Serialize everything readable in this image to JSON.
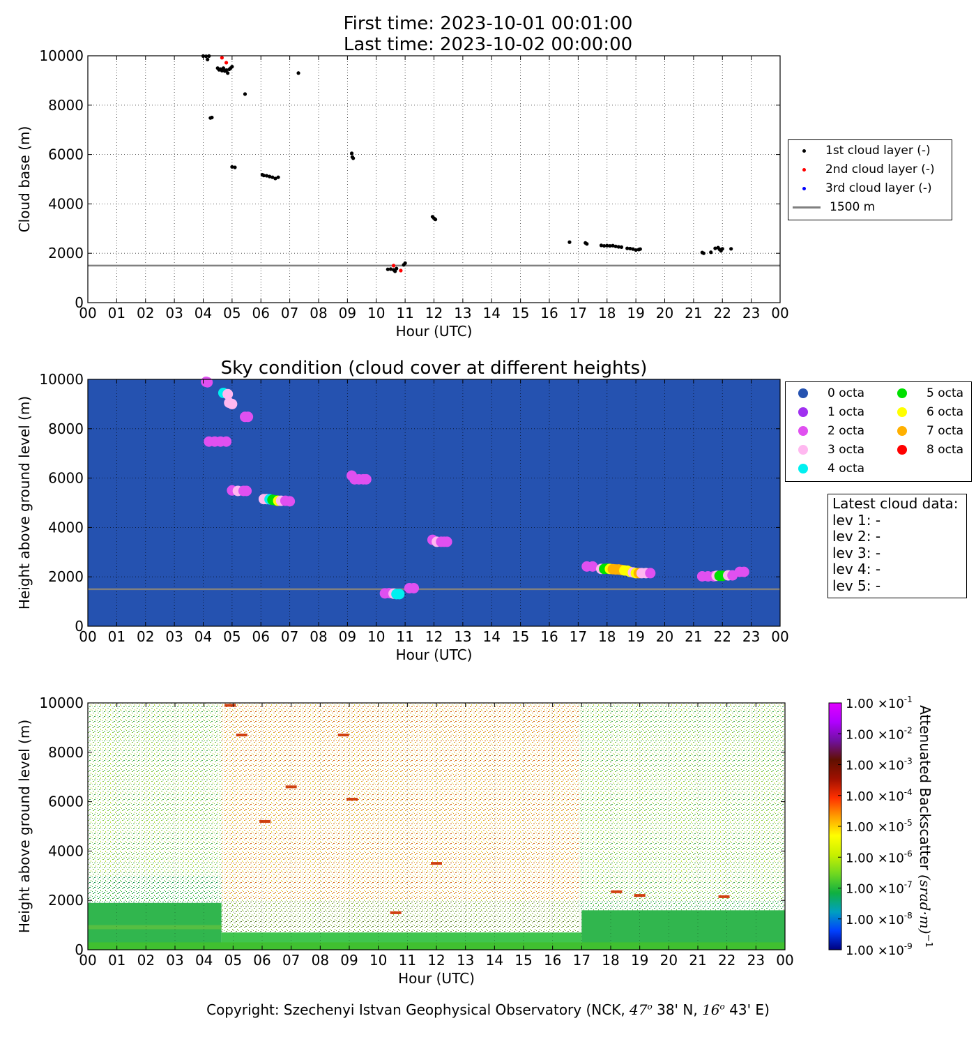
{
  "header": {
    "first_time": "First time: 2023-10-01 00:01:00",
    "last_time": "Last time: 2023-10-02 00:00:00"
  },
  "footer": {
    "copyright_prefix": "Copyright: Szechenyi Istvan Geophysical Observatory (NCK,",
    "lat_deg": "47",
    "lat_min": "38' N,",
    "lon_deg": "16",
    "lon_min": "43' E)"
  },
  "latest_cloud": {
    "title": "Latest cloud data:",
    "lines": [
      "lev 1: -",
      "lev 2: -",
      "lev 3: -",
      "lev 4: -",
      "lev 5: -"
    ]
  },
  "hour_ticks": [
    "00",
    "01",
    "02",
    "03",
    "04",
    "05",
    "06",
    "07",
    "08",
    "09",
    "10",
    "11",
    "12",
    "13",
    "14",
    "15",
    "16",
    "17",
    "18",
    "19",
    "20",
    "21",
    "22",
    "23",
    "00"
  ],
  "colors": {
    "first_layer": "#000000",
    "second_layer": "#ff0000",
    "third_layer": "#0000ff",
    "ref_line": "#808080",
    "sky_background": "#2552b0"
  },
  "chart_data": [
    {
      "type": "scatter",
      "title": "",
      "xlabel": "Hour (UTC)",
      "ylabel": "Cloud base (m)",
      "xlim": [
        0,
        24
      ],
      "ylim": [
        0,
        10000
      ],
      "yticks": [
        "0",
        "2000",
        "4000",
        "6000",
        "8000",
        "10000"
      ],
      "grid": true,
      "legend_placement": "outside-right",
      "reference_line": {
        "y": 1500,
        "label": "1500 m"
      },
      "series": [
        {
          "name": "1st cloud layer (-)",
          "color": "#000000",
          "points": [
            [
              4.0,
              9990
            ],
            [
              4.1,
              9980
            ],
            [
              4.15,
              9850
            ],
            [
              4.2,
              9990
            ],
            [
              4.25,
              7480
            ],
            [
              4.3,
              7500
            ],
            [
              4.5,
              9500
            ],
            [
              4.55,
              9430
            ],
            [
              4.6,
              9460
            ],
            [
              4.65,
              9400
            ],
            [
              4.7,
              9500
            ],
            [
              4.75,
              9380
            ],
            [
              4.8,
              9420
            ],
            [
              4.85,
              9300
            ],
            [
              4.9,
              9450
            ],
            [
              4.95,
              9500
            ],
            [
              5.0,
              9560
            ],
            [
              5.0,
              5500
            ],
            [
              5.1,
              5480
            ],
            [
              5.45,
              8450
            ],
            [
              6.05,
              5180
            ],
            [
              6.1,
              5150
            ],
            [
              6.2,
              5140
            ],
            [
              6.3,
              5110
            ],
            [
              6.4,
              5080
            ],
            [
              6.5,
              5030
            ],
            [
              6.6,
              5080
            ],
            [
              7.3,
              9300
            ],
            [
              9.15,
              6050
            ],
            [
              9.17,
              5900
            ],
            [
              9.2,
              5850
            ],
            [
              10.4,
              1350
            ],
            [
              10.5,
              1360
            ],
            [
              10.6,
              1330
            ],
            [
              10.65,
              1270
            ],
            [
              10.7,
              1380
            ],
            [
              10.95,
              1530
            ],
            [
              11.0,
              1600
            ],
            [
              11.95,
              3480
            ],
            [
              12.0,
              3420
            ],
            [
              12.05,
              3370
            ],
            [
              16.7,
              2450
            ],
            [
              17.25,
              2420
            ],
            [
              17.3,
              2380
            ],
            [
              17.8,
              2320
            ],
            [
              17.9,
              2300
            ],
            [
              18.0,
              2310
            ],
            [
              18.1,
              2300
            ],
            [
              18.2,
              2310
            ],
            [
              18.3,
              2280
            ],
            [
              18.4,
              2260
            ],
            [
              18.5,
              2250
            ],
            [
              18.7,
              2200
            ],
            [
              18.8,
              2190
            ],
            [
              18.9,
              2170
            ],
            [
              19.0,
              2130
            ],
            [
              19.1,
              2150
            ],
            [
              19.15,
              2170
            ],
            [
              21.3,
              2030
            ],
            [
              21.35,
              2000
            ],
            [
              21.6,
              2040
            ],
            [
              21.75,
              2200
            ],
            [
              21.85,
              2230
            ],
            [
              21.9,
              2160
            ],
            [
              21.95,
              2100
            ],
            [
              22.0,
              2180
            ],
            [
              22.3,
              2180
            ]
          ]
        },
        {
          "name": "2nd cloud layer (-)",
          "color": "#ff0000",
          "points": [
            [
              4.65,
              9920
            ],
            [
              4.8,
              9720
            ],
            [
              10.6,
              1500
            ],
            [
              10.85,
              1300
            ]
          ]
        },
        {
          "name": "3rd cloud layer (-)",
          "color": "#0000ff",
          "points": []
        }
      ]
    },
    {
      "type": "scatter",
      "title": "Sky condition (cloud cover at different heights)",
      "xlabel": "Hour (UTC)",
      "ylabel": "Height above ground level (m)",
      "xlim": [
        0,
        24
      ],
      "ylim": [
        0,
        10000
      ],
      "yticks": [
        "0",
        "2000",
        "4000",
        "6000",
        "8000",
        "10000"
      ],
      "grid": true,
      "background": "#2552b0",
      "legend_placement": "outside-right",
      "reference_line": {
        "y": 1500
      },
      "legend": [
        {
          "label": "0 octa",
          "color": "#2552b0"
        },
        {
          "label": "1 octa",
          "color": "#a030f0"
        },
        {
          "label": "2 octa",
          "color": "#e050f0"
        },
        {
          "label": "3 octa",
          "color": "#ffb8f0"
        },
        {
          "label": "4 octa",
          "color": "#00f0f0"
        },
        {
          "label": "5 octa",
          "color": "#00e000"
        },
        {
          "label": "6 octa",
          "color": "#ffff00"
        },
        {
          "label": "7 octa",
          "color": "#ffb000"
        },
        {
          "label": "8 octa",
          "color": "#ff0000"
        }
      ],
      "points": [
        [
          4.1,
          9900,
          2
        ],
        [
          4.15,
          9880,
          2
        ],
        [
          4.2,
          7480,
          2
        ],
        [
          4.4,
          7480,
          2
        ],
        [
          4.6,
          7480,
          2
        ],
        [
          4.8,
          7480,
          2
        ],
        [
          4.7,
          9450,
          4
        ],
        [
          4.85,
          9400,
          3
        ],
        [
          4.9,
          9050,
          3
        ],
        [
          5.0,
          9000,
          3
        ],
        [
          5.45,
          8480,
          2
        ],
        [
          5.55,
          8480,
          2
        ],
        [
          5.0,
          5500,
          2
        ],
        [
          5.2,
          5480,
          3
        ],
        [
          5.4,
          5480,
          2
        ],
        [
          5.5,
          5480,
          2
        ],
        [
          6.1,
          5150,
          3
        ],
        [
          6.2,
          5150,
          3
        ],
        [
          6.3,
          5140,
          4
        ],
        [
          6.4,
          5120,
          5
        ],
        [
          6.5,
          5100,
          5
        ],
        [
          6.6,
          5080,
          6
        ],
        [
          6.7,
          5080,
          3
        ],
        [
          6.85,
          5080,
          2
        ],
        [
          7.0,
          5060,
          2
        ],
        [
          9.15,
          6100,
          2
        ],
        [
          9.25,
          5950,
          2
        ],
        [
          9.4,
          5950,
          2
        ],
        [
          9.55,
          5950,
          2
        ],
        [
          9.65,
          5950,
          2
        ],
        [
          10.3,
          1330,
          2
        ],
        [
          10.45,
          1340,
          2
        ],
        [
          10.6,
          1320,
          3
        ],
        [
          10.7,
          1300,
          4
        ],
        [
          10.8,
          1300,
          4
        ],
        [
          11.15,
          1540,
          2
        ],
        [
          11.3,
          1540,
          2
        ],
        [
          11.95,
          3500,
          2
        ],
        [
          12.1,
          3420,
          3
        ],
        [
          12.25,
          3420,
          2
        ],
        [
          12.35,
          3420,
          2
        ],
        [
          12.45,
          3420,
          2
        ],
        [
          17.3,
          2420,
          2
        ],
        [
          17.5,
          2420,
          2
        ],
        [
          17.8,
          2320,
          3
        ],
        [
          17.9,
          2320,
          5
        ],
        [
          18.0,
          2330,
          5
        ],
        [
          18.1,
          2320,
          6
        ],
        [
          18.2,
          2310,
          7
        ],
        [
          18.3,
          2300,
          7
        ],
        [
          18.4,
          2300,
          7
        ],
        [
          18.5,
          2280,
          7
        ],
        [
          18.6,
          2260,
          6
        ],
        [
          18.7,
          2250,
          6
        ],
        [
          18.8,
          2200,
          6
        ],
        [
          18.9,
          2180,
          3
        ],
        [
          19.0,
          2150,
          6
        ],
        [
          19.1,
          2150,
          7
        ],
        [
          19.2,
          2150,
          3
        ],
        [
          19.35,
          2150,
          3
        ],
        [
          19.5,
          2150,
          2
        ],
        [
          21.3,
          2020,
          2
        ],
        [
          21.5,
          2020,
          2
        ],
        [
          21.7,
          2020,
          2
        ],
        [
          21.8,
          2040,
          3
        ],
        [
          21.9,
          2040,
          5
        ],
        [
          22.0,
          2040,
          5
        ],
        [
          22.2,
          2060,
          3
        ],
        [
          22.35,
          2060,
          2
        ],
        [
          22.6,
          2200,
          2
        ],
        [
          22.75,
          2200,
          2
        ]
      ]
    },
    {
      "type": "heatmap",
      "title": "",
      "xlabel": "Hour (UTC)",
      "ylabel": "Height above ground level (m)",
      "xlim": [
        0,
        24
      ],
      "ylim": [
        0,
        10000
      ],
      "yticks": [
        "0",
        "2000",
        "4000",
        "6000",
        "8000",
        "10000"
      ],
      "colorbar_label": "Attenuated Backscatter",
      "colorbar_unit": "(srad·m)",
      "colorbar_unit_exp": "−1",
      "colorbar_ticks": [
        {
          "mantissa": "1.00",
          "exp": "-9"
        },
        {
          "mantissa": "1.00",
          "exp": "-8"
        },
        {
          "mantissa": "1.00",
          "exp": "-7"
        },
        {
          "mantissa": "1.00",
          "exp": "-6"
        },
        {
          "mantissa": "1.00",
          "exp": "-5"
        },
        {
          "mantissa": "1.00",
          "exp": "-4"
        },
        {
          "mantissa": "1.00",
          "exp": "-3"
        },
        {
          "mantissa": "1.00",
          "exp": "-2"
        },
        {
          "mantissa": "1.00",
          "exp": "-1"
        }
      ],
      "colorbar_colors": [
        "#00007f",
        "#0040ff",
        "#00a0c0",
        "#10b040",
        "#70d820",
        "#c8f000",
        "#ffff00",
        "#ffa000",
        "#ff3000",
        "#a01000",
        "#601000",
        "#7010a0",
        "#b000ff",
        "#e000ff"
      ],
      "layers": [
        {
          "x0": 0,
          "x1": 4.6,
          "y0": 0,
          "y1": 1900,
          "level": "#20b040"
        },
        {
          "x0": 4.6,
          "x1": 17,
          "y0": 0,
          "y1": 700,
          "level": "#30c040"
        },
        {
          "x0": 17,
          "x1": 24,
          "y0": 0,
          "y1": 1600,
          "level": "#20b040"
        },
        {
          "x0": 4.6,
          "x1": 16.9,
          "y0": 3000,
          "y1": 10000,
          "level": "#e0c040"
        }
      ],
      "cloud_marks": [
        [
          4.9,
          9900
        ],
        [
          5.3,
          8700
        ],
        [
          7.0,
          6600
        ],
        [
          8.8,
          8700
        ],
        [
          9.1,
          6100
        ],
        [
          6.1,
          5200
        ],
        [
          10.6,
          1500
        ],
        [
          12.0,
          3500
        ],
        [
          18.2,
          2350
        ],
        [
          19.0,
          2200
        ],
        [
          21.9,
          2150
        ]
      ]
    }
  ]
}
